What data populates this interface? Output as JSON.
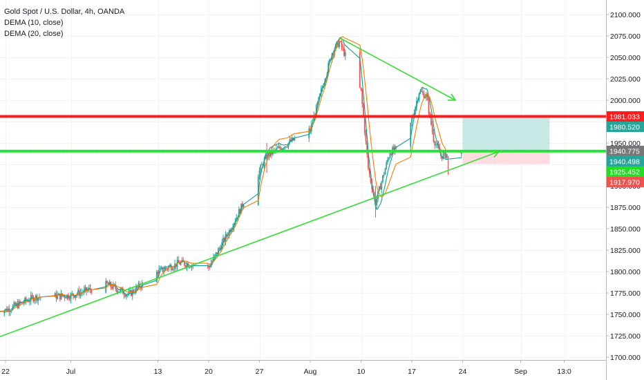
{
  "legend": {
    "symbol_line": "Gold Spot / U.S. Dollar, 4h, OANDA",
    "dema10": "DEMA (10, close)",
    "dema20": "DEMA (20, close)"
  },
  "colors": {
    "up": "#26a69a",
    "down": "#ef5350",
    "dema10": "#0b9e95",
    "dema20": "#f57c00",
    "resistance": "#ff1c1c",
    "support": "#22ee22",
    "trend": "#33dd33",
    "target_zone": "#b2dfdb",
    "stop_zone": "#ffcdd2"
  },
  "chart_data": {
    "type": "candlestick",
    "title": "Gold Spot / U.S. Dollar, 4h, OANDA",
    "indicators": [
      "DEMA (10, close)",
      "DEMA (20, close)"
    ],
    "y_axis": {
      "min": 1700,
      "max": 2100,
      "ticks": [
        "2100.000",
        "2075.000",
        "2050.000",
        "2025.000",
        "2000.000",
        "1975.000",
        "1950.000",
        "1925.000",
        "1900.000",
        "1875.000",
        "1850.000",
        "1825.000",
        "1800.000",
        "1775.000",
        "1750.000",
        "1725.000",
        "1700.000"
      ]
    },
    "x_axis": {
      "ticks": [
        {
          "label": "22",
          "date": "2020-06-22"
        },
        {
          "label": "Jul",
          "date": "2020-07-01"
        },
        {
          "label": "13",
          "date": "2020-07-13"
        },
        {
          "label": "20",
          "date": "2020-07-20"
        },
        {
          "label": "27",
          "date": "2020-07-27"
        },
        {
          "label": "Aug",
          "date": "2020-08-03"
        },
        {
          "label": "10",
          "date": "2020-08-10"
        },
        {
          "label": "17",
          "date": "2020-08-17"
        },
        {
          "label": "24",
          "date": "2020-08-24"
        },
        {
          "label": "Sep",
          "date": "2020-09-01"
        },
        {
          "label": "13:0",
          "date": "2020-09-07"
        }
      ]
    },
    "price_path": [
      [
        "2020-06-22",
        1755
      ],
      [
        "2020-06-26",
        1770
      ],
      [
        "2020-07-01",
        1772
      ],
      [
        "2020-07-06",
        1785
      ],
      [
        "2020-07-09",
        1773
      ],
      [
        "2020-07-13",
        1800
      ],
      [
        "2020-07-16",
        1810
      ],
      [
        "2020-07-20",
        1805
      ],
      [
        "2020-07-23",
        1850
      ],
      [
        "2020-07-26",
        1900
      ],
      [
        "2020-07-28",
        1935
      ],
      [
        "2020-08-03",
        1965
      ],
      [
        "2020-08-06",
        2055
      ],
      [
        "2020-08-07",
        2068
      ],
      [
        "2020-08-09",
        2030
      ],
      [
        "2020-08-10",
        2010
      ],
      [
        "2020-08-11",
        1920
      ],
      [
        "2020-08-12",
        1880
      ],
      [
        "2020-08-14",
        1940
      ],
      [
        "2020-08-16",
        1945
      ],
      [
        "2020-08-18",
        2010
      ],
      [
        "2020-08-19",
        2005
      ],
      [
        "2020-08-20",
        1955
      ],
      [
        "2020-08-21",
        1935
      ],
      [
        "2020-08-23",
        1940
      ]
    ],
    "horizontal_levels": [
      {
        "label": "1981.033",
        "value": 1981.033,
        "style": "resistance"
      },
      {
        "label": "1940.498",
        "value": 1940.498,
        "style": "support"
      }
    ],
    "price_tags": [
      {
        "label": "1981.033",
        "value": 1981.033,
        "color": "#ff1c1c"
      },
      {
        "label": "1980.520",
        "value": 1980.52,
        "color": "#26a69a"
      },
      {
        "label": "1940.775",
        "value": 1940.775,
        "color": "#777777"
      },
      {
        "label": "1940.498",
        "value": 1940.498,
        "color": "#26a69a"
      },
      {
        "label": "1925.452",
        "value": 1925.452,
        "color": "#22dd22"
      },
      {
        "label": "1917.970",
        "value": 1917.97,
        "color": "#ef5350"
      }
    ],
    "trend_lines": [
      {
        "from": [
          "2020-06-19",
          1717
        ],
        "to": [
          "2020-08-29",
          1940
        ],
        "arrow": true
      },
      {
        "from": [
          "2020-08-07",
          2073
        ],
        "to": [
          "2020-08-23",
          2000
        ],
        "arrow": true
      }
    ],
    "position_box": {
      "start": "2020-08-24",
      "end": "2020-09-05",
      "entry": 1940.775,
      "target": 1980.52,
      "stop": 1925.452
    }
  }
}
